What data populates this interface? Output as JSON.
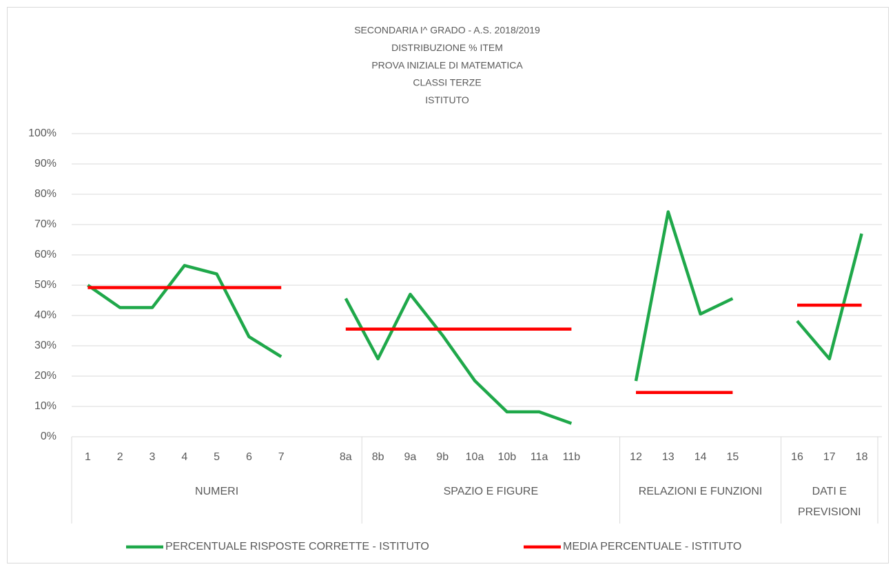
{
  "chart_data": {
    "type": "line",
    "title": [
      "SECONDARIA I^ GRADO - A.S. 2018/2019",
      "DISTRIBUZIONE % ITEM",
      "PROVA INIZIALE DI MATEMATICA",
      "CLASSI TERZE",
      "ISTITUTO"
    ],
    "categories": [
      "1",
      "2",
      "3",
      "4",
      "5",
      "6",
      "7",
      null,
      "8a",
      "8b",
      "9a",
      "9b",
      "10a",
      "10b",
      "11a",
      "11b",
      null,
      "12",
      "13",
      "14",
      "15",
      null,
      "16",
      "17",
      "18"
    ],
    "groups": [
      {
        "label": "NUMERI",
        "span": 9
      },
      {
        "label": "SPAZIO E FIGURE",
        "span": 8
      },
      {
        "label": "RELAZIONI E FUNZIONI",
        "span": 5
      },
      {
        "label": "DATI E PREVISIONI",
        "span": 3
      }
    ],
    "series": [
      {
        "name": "PERCENTUALE RISPOSTE CORRETTE - ISTITUTO",
        "color": "#1fa84a",
        "values": [
          50,
          42.6,
          42.6,
          56.5,
          53.7,
          33,
          26.4,
          null,
          45.6,
          25.7,
          47,
          33.5,
          18.5,
          8.2,
          8.2,
          4.4,
          null,
          18.4,
          74.2,
          40.5,
          45.6,
          null,
          38.2,
          25.7,
          67
        ]
      },
      {
        "name": "MEDIA PERCENTUALE  - ISTITUTO",
        "color": "#ff0000",
        "values": [
          49.2,
          49.2,
          49.2,
          49.2,
          49.2,
          49.2,
          49.2,
          null,
          35.5,
          35.5,
          35.5,
          35.5,
          35.5,
          35.5,
          35.5,
          35.5,
          null,
          14.6,
          14.6,
          14.6,
          14.6,
          null,
          43.4,
          43.4,
          43.4
        ]
      }
    ],
    "ylim": [
      0,
      100
    ],
    "yticks": [
      {
        "value": 0,
        "label": "0%"
      },
      {
        "value": 10,
        "label": "10%"
      },
      {
        "value": 20,
        "label": "20%"
      },
      {
        "value": 30,
        "label": "30%"
      },
      {
        "value": 40,
        "label": "40%"
      },
      {
        "value": 50,
        "label": "50%"
      },
      {
        "value": 60,
        "label": "60%"
      },
      {
        "value": 70,
        "label": "70%"
      },
      {
        "value": 80,
        "label": "80%"
      },
      {
        "value": 90,
        "label": "90%"
      },
      {
        "value": 100,
        "label": "100%"
      }
    ],
    "grid": true,
    "legend": "bottom"
  }
}
